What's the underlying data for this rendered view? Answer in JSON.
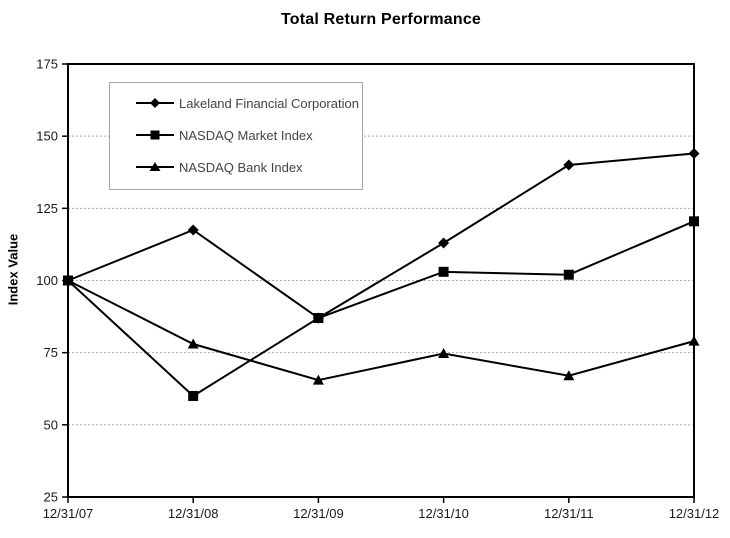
{
  "chart_data": {
    "type": "line",
    "title": "Total Return Performance",
    "xlabel": "",
    "ylabel": "Index Value",
    "categories": [
      "12/31/07",
      "12/31/08",
      "12/31/09",
      "12/31/10",
      "12/31/11",
      "12/31/12"
    ],
    "series": [
      {
        "name": "Lakeland Financial Corporation",
        "marker": "diamond",
        "values": [
          100,
          117.5,
          87,
          113,
          140,
          144
        ]
      },
      {
        "name": "NASDAQ Market Index",
        "marker": "square",
        "values": [
          100,
          60,
          87,
          103,
          102,
          120.5
        ]
      },
      {
        "name": "NASDAQ Bank Index",
        "marker": "triangle",
        "values": [
          100,
          78,
          65.5,
          74.7,
          67,
          79
        ]
      }
    ],
    "ylim": [
      25,
      175
    ],
    "y_ticks": [
      175,
      150,
      125,
      100,
      75,
      50,
      25
    ],
    "grid": true,
    "grid_ticks": [
      150,
      125,
      100,
      75,
      50
    ],
    "legend_position": "upper-left-inside",
    "colors": {
      "series": "#000000",
      "gridline": "#ababab",
      "axis": "#000000",
      "legend_border": "#a6a6a6",
      "legend_text": "#444444",
      "tick_text": "#1a1a1a",
      "title_text": "#000000"
    }
  }
}
